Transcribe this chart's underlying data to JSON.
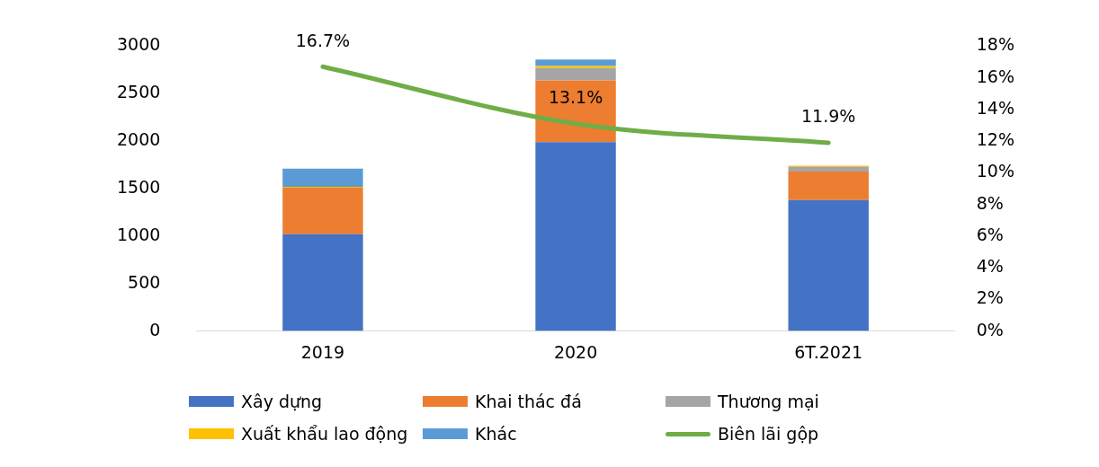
{
  "chart_data": {
    "type": "bar",
    "stacked": true,
    "categories": [
      "2019",
      "2020",
      "6T.2021"
    ],
    "series": [
      {
        "name": "Xây dựng",
        "color": "#4472c4",
        "values": [
          1020,
          1990,
          1380
        ]
      },
      {
        "name": "Khai thác đá",
        "color": "#ed7d31",
        "values": [
          490,
          650,
          300
        ]
      },
      {
        "name": "Thương mại",
        "color": "#a5a5a5",
        "values": [
          0,
          130,
          50
        ]
      },
      {
        "name": "Xuất khẩu lao động",
        "color": "#ffc000",
        "values": [
          10,
          20,
          10
        ]
      },
      {
        "name": "Khác",
        "color": "#5b9bd5",
        "values": [
          190,
          70,
          0
        ]
      },
      {
        "name": "Biên lãi gộp",
        "type": "line",
        "axis": "y2",
        "color": "#70ad47",
        "values": [
          16.7,
          13.1,
          11.9
        ],
        "value_labels": [
          "16.7%",
          "13.1%",
          "11.9%"
        ]
      }
    ],
    "ylim": [
      0,
      3000
    ],
    "yticks": [
      0,
      500,
      1000,
      1500,
      2000,
      2500,
      3000
    ],
    "y2lim": [
      0,
      18
    ],
    "y2ticks": [
      {
        "value": 0,
        "label": "0%"
      },
      {
        "value": 2,
        "label": "2%"
      },
      {
        "value": 4,
        "label": "4%"
      },
      {
        "value": 6,
        "label": "6%"
      },
      {
        "value": 8,
        "label": "8%"
      },
      {
        "value": 10,
        "label": "10%"
      },
      {
        "value": 12,
        "label": "12%"
      },
      {
        "value": 14,
        "label": "14%"
      },
      {
        "value": 16,
        "label": "16%"
      },
      {
        "value": 18,
        "label": "18%"
      }
    ],
    "grid": false,
    "legend": "bottom",
    "marker": "none"
  }
}
